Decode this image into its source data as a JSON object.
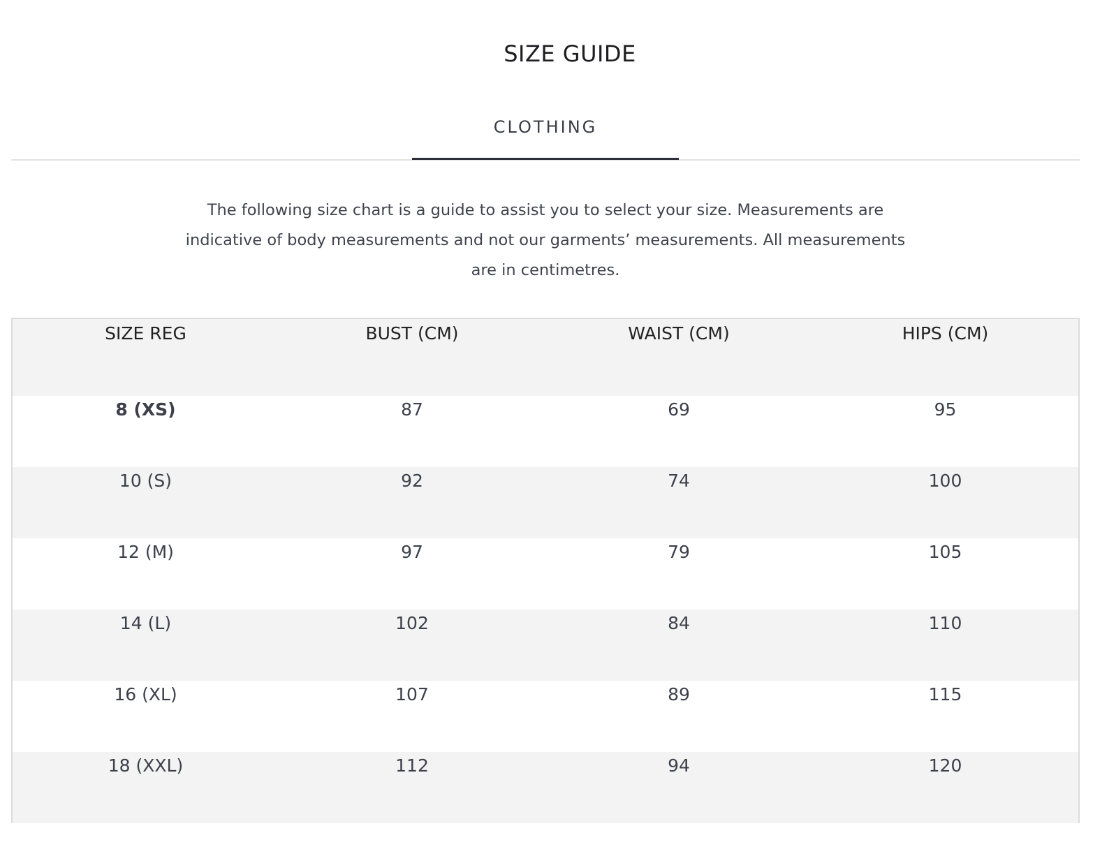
{
  "title": "SIZE GUIDE",
  "tabs": [
    {
      "label": "CLOTHING",
      "active": true
    }
  ],
  "intro": "The following size chart is a guide to assist you to select your size. Measurements are indicative of body measurements and not our garments’ measurements. All measurements are in centimetres.",
  "table": {
    "headers": [
      "SIZE REG",
      "BUST (CM)",
      "WAIST (CM)",
      "HIPS (CM)"
    ],
    "rows": [
      [
        "8 (XS)",
        "87",
        "69",
        "95"
      ],
      [
        "10 (S)",
        "92",
        "74",
        "100"
      ],
      [
        "12 (M)",
        "97",
        "79",
        "105"
      ],
      [
        "14 (L)",
        "102",
        "84",
        "110"
      ],
      [
        "16 (XL)",
        "107",
        "89",
        "115"
      ],
      [
        "18 (XXL)",
        "112",
        "94",
        "120"
      ]
    ]
  }
}
